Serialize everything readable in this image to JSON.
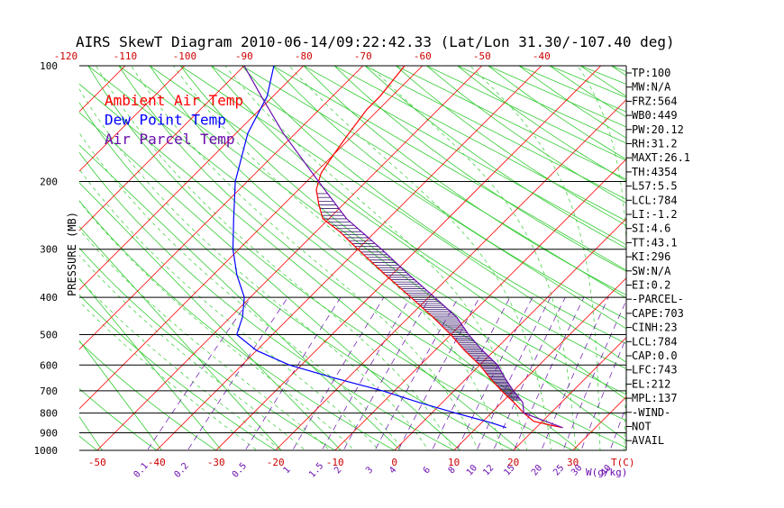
{
  "chart_data": {
    "type": "line",
    "title": "AIRS SkewT Diagram 2010-06-14/09:22:42.33 (Lat/Lon 31.30/-107.40 deg)",
    "ylabel": "PRESSURE (MB)",
    "xlabel": "T(C)",
    "mixing_ratio_unit": "W(g/kg)",
    "pressure_range": [
      1000,
      100
    ],
    "temperature_range_at_1000mb": [
      -53,
      39
    ],
    "pressure_ticks": [
      100,
      200,
      300,
      400,
      500,
      600,
      700,
      800,
      900,
      1000
    ],
    "bottom_temp_ticks": [
      -50,
      -40,
      -30,
      -20,
      -10,
      0,
      10,
      20,
      30
    ],
    "top_temp_ticks": [
      -120,
      -110,
      -100,
      -90,
      -80,
      -70,
      -60,
      -50,
      -40
    ],
    "mixing_ratio_labels": [
      "0.1",
      "0.2",
      "0.5",
      "1",
      "1.5",
      "2",
      "3",
      "4",
      "6",
      "8",
      "10",
      "12",
      "15",
      "20",
      "25",
      "30",
      "40"
    ],
    "legend": [
      {
        "name": "Ambient Air Temp",
        "color": "#ff0000"
      },
      {
        "name": "Dew Point Temp",
        "color": "#0000ff"
      },
      {
        "name": "Air Parcel Temp",
        "color": "#6a0dad"
      }
    ],
    "series": [
      {
        "name": "Ambient Air Temp",
        "color": "#ff0000",
        "p": [
          873,
          860,
          840,
          800,
          750,
          700,
          650,
          600,
          550,
          500,
          450,
          400,
          350,
          300,
          270,
          250,
          230,
          210,
          200,
          190,
          170,
          150,
          130,
          120,
          100
        ],
        "t": [
          24.5,
          22,
          18.5,
          15.5,
          12,
          8,
          4,
          0,
          -5,
          -10,
          -16,
          -23,
          -31,
          -40,
          -46,
          -51,
          -54,
          -57,
          -58,
          -59,
          -60,
          -61,
          -62,
          -62,
          -63
        ]
      },
      {
        "name": "Dew Point Temp",
        "color": "#0000ff",
        "p": [
          873,
          850,
          800,
          750,
          700,
          650,
          600,
          550,
          500,
          450,
          400,
          350,
          300,
          250,
          200,
          150,
          120,
          100
        ],
        "t": [
          15,
          12,
          4,
          -4,
          -12,
          -22,
          -32,
          -40,
          -46,
          -48,
          -51,
          -56,
          -61,
          -66,
          -72,
          -78,
          -81,
          -85
        ]
      },
      {
        "name": "Air Parcel Temp",
        "color": "#6a0dad",
        "p": [
          873,
          840,
          800,
          750,
          700,
          650,
          600,
          550,
          500,
          450,
          400,
          350,
          300,
          250,
          200,
          150,
          120,
          100
        ],
        "t": [
          24.5,
          20.5,
          15.5,
          13.5,
          10,
          6.5,
          3,
          -2,
          -7,
          -12,
          -19,
          -27,
          -36,
          -47,
          -58,
          -72,
          -82,
          -90
        ]
      }
    ],
    "indices": [
      "TP:100",
      "MW:N/A",
      "FRZ:564",
      "WB0:449",
      "PW:20.12",
      "RH:31.2",
      "MAXT:26.1",
      "TH:4354",
      "L57:5.5",
      "LCL:784",
      "LI:-1.2",
      "SI:4.6",
      "TT:43.1",
      "KI:296",
      "SW:N/A",
      "EI:0.2",
      "-PARCEL-",
      "CAPE:703",
      "CINH:23",
      "LCL:784",
      "CAP:0.0",
      "LFC:743",
      "EL:212",
      "MPL:137",
      "-WIND-",
      "NOT",
      "AVAIL"
    ]
  }
}
